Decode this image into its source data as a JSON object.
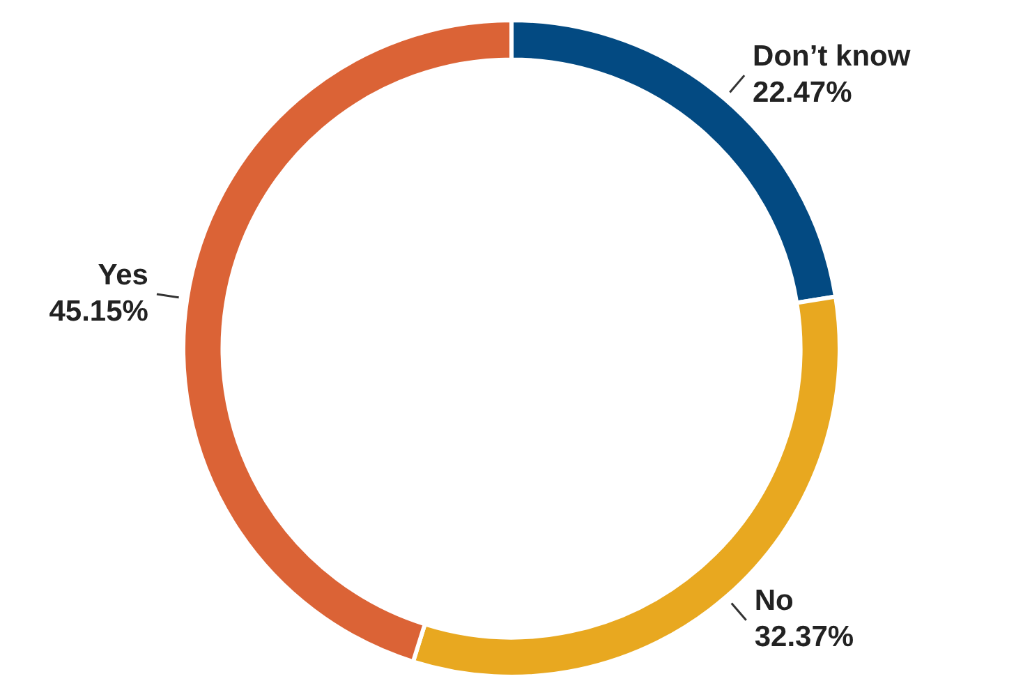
{
  "chart_data": {
    "type": "donut",
    "categories": [
      "Don’t know",
      "No",
      "Yes"
    ],
    "values": [
      22.47,
      32.37,
      45.15
    ],
    "value_labels": [
      "22.47%",
      "32.37%",
      "45.15%"
    ],
    "colors": [
      "#034a82",
      "#e8a820",
      "#db6336"
    ]
  }
}
